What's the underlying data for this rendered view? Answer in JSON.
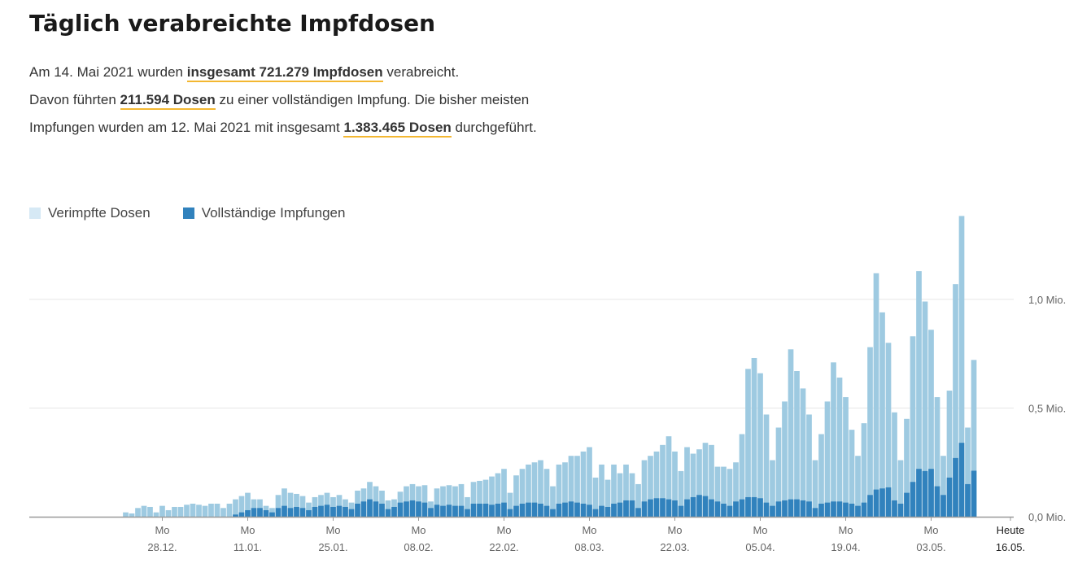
{
  "header": {
    "title": "Täglich verabreichte Impfdosen",
    "p1_pre": "Am 14. Mai 2021 wurden ",
    "p1_hl": "insgesamt 721.279 Impfdosen",
    "p1_post": " verabreicht.",
    "p2_pre": "Davon führten ",
    "p2_hl": "211.594 Dosen",
    "p2_post": " zu einer vollständigen Impfung. Die bisher meisten Impfungen wurden am 12. Mai 2021 mit insgesamt ",
    "p3_hl": "1.383.465 Dosen",
    "p3_post": " durchgeführt."
  },
  "colors": {
    "total": "#9ecae1",
    "full": "#3182bd",
    "highlight": "#f3b731",
    "grid": "#e6e6e6",
    "axis": "#999999"
  },
  "chart_data": {
    "type": "bar",
    "stacked": "overlay",
    "series": [
      {
        "name": "Verimpfte Dosen",
        "color": "#9ecae1",
        "values": [
          0.02,
          0.015,
          0.04,
          0.05,
          0.045,
          0.02,
          0.05,
          0.03,
          0.045,
          0.045,
          0.055,
          0.06,
          0.055,
          0.05,
          0.06,
          0.06,
          0.04,
          0.06,
          0.08,
          0.095,
          0.11,
          0.08,
          0.08,
          0.05,
          0.04,
          0.1,
          0.13,
          0.11,
          0.105,
          0.095,
          0.065,
          0.09,
          0.1,
          0.11,
          0.09,
          0.1,
          0.08,
          0.065,
          0.12,
          0.13,
          0.16,
          0.14,
          0.12,
          0.075,
          0.08,
          0.115,
          0.14,
          0.15,
          0.14,
          0.145,
          0.07,
          0.13,
          0.14,
          0.145,
          0.14,
          0.15,
          0.09,
          0.16,
          0.165,
          0.17,
          0.185,
          0.2,
          0.22,
          0.11,
          0.19,
          0.22,
          0.24,
          0.25,
          0.26,
          0.22,
          0.14,
          0.24,
          0.25,
          0.28,
          0.28,
          0.3,
          0.32,
          0.18,
          0.24,
          0.17,
          0.24,
          0.2,
          0.24,
          0.2,
          0.15,
          0.26,
          0.28,
          0.3,
          0.33,
          0.37,
          0.3,
          0.21,
          0.32,
          0.29,
          0.31,
          0.34,
          0.33,
          0.23,
          0.23,
          0.22,
          0.25,
          0.38,
          0.68,
          0.73,
          0.66,
          0.47,
          0.26,
          0.41,
          0.53,
          0.77,
          0.67,
          0.59,
          0.47,
          0.26,
          0.38,
          0.53,
          0.71,
          0.64,
          0.55,
          0.4,
          0.28,
          0.43,
          0.78,
          1.12,
          0.94,
          0.8,
          0.48,
          0.26,
          0.45,
          0.83,
          1.13,
          0.99,
          0.86,
          0.55,
          0.28,
          0.58,
          1.07,
          1.383465,
          0.41,
          0.721279
        ]
      },
      {
        "name": "Vollständige Impfungen",
        "color": "#3182bd",
        "values": [
          0,
          0,
          0,
          0,
          0,
          0,
          0,
          0,
          0,
          0,
          0,
          0,
          0,
          0,
          0,
          0,
          0,
          0,
          0.01,
          0.02,
          0.03,
          0.04,
          0.04,
          0.03,
          0.02,
          0.04,
          0.05,
          0.04,
          0.045,
          0.04,
          0.03,
          0.045,
          0.05,
          0.055,
          0.045,
          0.05,
          0.045,
          0.035,
          0.06,
          0.07,
          0.08,
          0.07,
          0.06,
          0.035,
          0.045,
          0.065,
          0.07,
          0.075,
          0.07,
          0.065,
          0.04,
          0.055,
          0.05,
          0.055,
          0.05,
          0.05,
          0.035,
          0.06,
          0.06,
          0.06,
          0.055,
          0.06,
          0.065,
          0.035,
          0.05,
          0.06,
          0.065,
          0.065,
          0.06,
          0.05,
          0.035,
          0.06,
          0.065,
          0.07,
          0.065,
          0.06,
          0.055,
          0.035,
          0.05,
          0.045,
          0.06,
          0.065,
          0.075,
          0.075,
          0.04,
          0.07,
          0.08,
          0.085,
          0.085,
          0.08,
          0.075,
          0.05,
          0.08,
          0.09,
          0.1,
          0.095,
          0.08,
          0.07,
          0.06,
          0.05,
          0.07,
          0.08,
          0.09,
          0.09,
          0.085,
          0.065,
          0.05,
          0.07,
          0.075,
          0.08,
          0.08,
          0.075,
          0.07,
          0.04,
          0.06,
          0.065,
          0.07,
          0.07,
          0.065,
          0.06,
          0.05,
          0.065,
          0.1,
          0.125,
          0.13,
          0.135,
          0.075,
          0.06,
          0.11,
          0.16,
          0.22,
          0.21,
          0.22,
          0.14,
          0.1,
          0.18,
          0.27,
          0.34,
          0.15,
          0.211594
        ]
      }
    ],
    "legend": [
      "Verimpfte Dosen",
      "Vollständige Impfungen"
    ],
    "legend_position": "top-left",
    "y_ticks": [
      {
        "value": 0,
        "label": "0,0 Mio."
      },
      {
        "value": 0.5,
        "label": "0,5 Mio."
      },
      {
        "value": 1.0,
        "label": "1,0 Mio."
      }
    ],
    "ylim": [
      0,
      1.4
    ],
    "x_ticks": [
      {
        "index": 6,
        "top": "Mo",
        "bottom": "28.12."
      },
      {
        "index": 20,
        "top": "Mo",
        "bottom": "11.01."
      },
      {
        "index": 34,
        "top": "Mo",
        "bottom": "25.01."
      },
      {
        "index": 48,
        "top": "Mo",
        "bottom": "08.02."
      },
      {
        "index": 62,
        "top": "Mo",
        "bottom": "22.02."
      },
      {
        "index": 76,
        "top": "Mo",
        "bottom": "08.03."
      },
      {
        "index": 90,
        "top": "Mo",
        "bottom": "22.03."
      },
      {
        "index": 104,
        "top": "Mo",
        "bottom": "05.04."
      },
      {
        "index": 118,
        "top": "Mo",
        "bottom": "19.04."
      },
      {
        "index": 132,
        "top": "Mo",
        "bottom": "03.05."
      },
      {
        "index": 145,
        "top": "Heute",
        "bottom": "16.05.",
        "emphasis": true
      }
    ],
    "grid": true
  }
}
